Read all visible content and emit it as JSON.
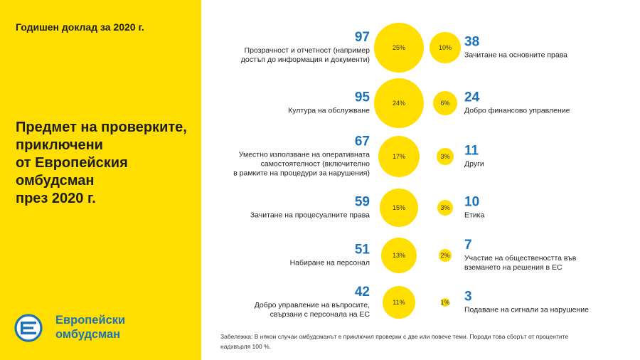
{
  "report_label": "Годишен доклад за 2020 г.",
  "colors": {
    "yellow": "#FFDE00",
    "blue": "#1B72B8",
    "text": "#1E1E1E"
  },
  "logo": {
    "icon": "european-ombudsman-logo-icon",
    "line1": "Европейски",
    "line2": "омбудсман"
  },
  "footnote_lines": [
    "Забележка: В някои случаи омбудсманът е приключил проверки с две или повече теми. Поради това сборът от процентите",
    "надхвърля 100 %."
  ],
  "chart_data": {
    "type": "scatter",
    "title_lines": [
      "Предмет на проверките,",
      "приключени",
      "от Европейския",
      "омбудсман",
      "през 2020 г."
    ],
    "left": [
      {
        "count": 97,
        "percent": 25,
        "label_lines": [
          "Прозрачност и отчетност (например",
          "достъп до информация и документи)"
        ]
      },
      {
        "count": 95,
        "percent": 24,
        "label_lines": [
          "Култура на обслужване"
        ]
      },
      {
        "count": 67,
        "percent": 17,
        "label_lines": [
          "Уместно използване на оперативната",
          "самостоятелност (включително",
          "в рамките на процедури за нарушения)"
        ]
      },
      {
        "count": 59,
        "percent": 15,
        "label_lines": [
          "Зачитане на процесуалните права"
        ]
      },
      {
        "count": 51,
        "percent": 13,
        "label_lines": [
          "Набиране на персонал"
        ]
      },
      {
        "count": 42,
        "percent": 11,
        "label_lines": [
          "Добро управление на въпросите,",
          "свързани с персонала на ЕС"
        ]
      }
    ],
    "right": [
      {
        "count": 38,
        "percent": 10,
        "label_lines": [
          "Зачитане на основните права"
        ]
      },
      {
        "count": 24,
        "percent": 6,
        "label_lines": [
          "Добро финансово управление"
        ]
      },
      {
        "count": 11,
        "percent": 3,
        "label_lines": [
          "Други"
        ]
      },
      {
        "count": 10,
        "percent": 3,
        "label_lines": [
          "Етика"
        ]
      },
      {
        "count": 7,
        "percent": 2,
        "label_lines": [
          "Участие на обществеността във",
          "вземането на решения в ЕС"
        ]
      },
      {
        "count": 3,
        "percent": 1,
        "label_lines": [
          "Подаване на сигнали за нарушение"
        ]
      }
    ]
  }
}
